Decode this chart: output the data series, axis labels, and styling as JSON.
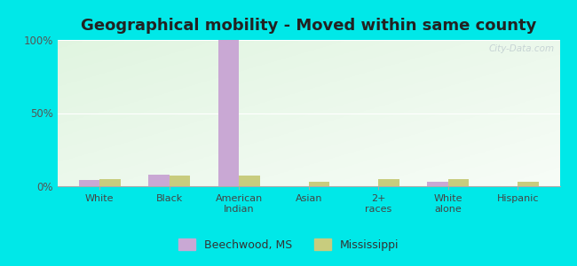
{
  "title": "Geographical mobility - Moved within same county",
  "categories": [
    "White",
    "Black",
    "American\nIndian",
    "Asian",
    "2+\nraces",
    "White\nalone",
    "Hispanic"
  ],
  "beechwood_values": [
    4,
    8,
    100,
    0,
    0,
    3,
    0
  ],
  "mississippi_values": [
    5,
    7,
    7,
    3,
    5,
    5,
    3
  ],
  "beechwood_color": "#c9a8d4",
  "mississippi_color": "#c8cc7e",
  "background_outer": "#00e8e8",
  "ylim": [
    0,
    100
  ],
  "yticks": [
    0,
    50,
    100
  ],
  "ytick_labels": [
    "0%",
    "50%",
    "100%"
  ],
  "bar_width": 0.3,
  "title_fontsize": 13,
  "legend_label_beechwood": "Beechwood, MS",
  "legend_label_mississippi": "Mississippi",
  "watermark": "City-Data.com"
}
